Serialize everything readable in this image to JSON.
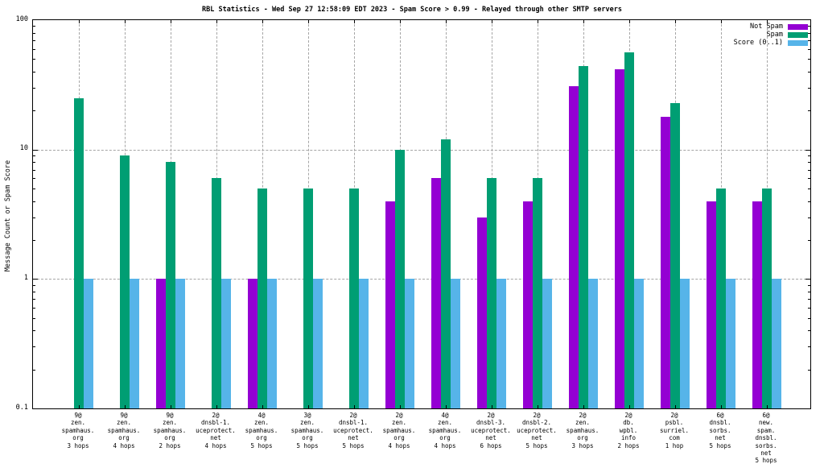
{
  "window": {
    "background": "#ffffff",
    "border_color": "#000000",
    "grid_color": "#a6a6a6"
  },
  "chart_data": {
    "type": "bar",
    "title": "RBL Statistics - Wed Sep 27 12:58:09 EDT 2023 - Spam Score > 0.99 - Relayed through other SMTP servers",
    "ylabel": "Message Count or Spam Score",
    "xlabel": "",
    "y_scale": "log",
    "ylim": [
      0.1,
      100
    ],
    "yticks": [
      0.1,
      1,
      10,
      100
    ],
    "ytick_labels": [
      "0.1",
      "1",
      "10",
      "100"
    ],
    "grid": true,
    "legend_position": "top-right-inside",
    "categories": [
      [
        "9@",
        "zen.",
        "spamhaus.",
        "org",
        "3 hops"
      ],
      [
        "9@",
        "zen.",
        "spamhaus.",
        "org",
        "4 hops"
      ],
      [
        "9@",
        "zen.",
        "spamhaus.",
        "org",
        "2 hops"
      ],
      [
        "2@",
        "dnsbl-1.",
        "uceprotect.",
        "net",
        "4 hops"
      ],
      [
        "4@",
        "zen.",
        "spamhaus.",
        "org",
        "5 hops"
      ],
      [
        "3@",
        "zen.",
        "spamhaus.",
        "org",
        "5 hops"
      ],
      [
        "2@",
        "dnsbl-1.",
        "uceprotect.",
        "net",
        "5 hops"
      ],
      [
        "2@",
        "zen.",
        "spamhaus.",
        "org",
        "4 hops"
      ],
      [
        "4@",
        "zen.",
        "spamhaus.",
        "org",
        "4 hops"
      ],
      [
        "2@",
        "dnsbl-3.",
        "uceprotect.",
        "net",
        "6 hops"
      ],
      [
        "2@",
        "dnsbl-2.",
        "uceprotect.",
        "net",
        "5 hops"
      ],
      [
        "2@",
        "zen.",
        "spamhaus.",
        "org",
        "3 hops"
      ],
      [
        "2@",
        "db.",
        "wpbl.",
        "info",
        "2 hops"
      ],
      [
        "2@",
        "psbl.",
        "surriel.",
        "com",
        "1 hop"
      ],
      [
        "6@",
        "dnsbl.",
        "sorbs.",
        "net",
        "5 hops"
      ],
      [
        "6@",
        "new.",
        "spam.",
        "dnsbl.",
        "sorbs.",
        "net",
        "5 hops"
      ]
    ],
    "series": [
      {
        "name": "Not Spam",
        "color": "#9400d3",
        "values": [
          0,
          0,
          1,
          0,
          1,
          0,
          0,
          4,
          6,
          3,
          4,
          31,
          42,
          18,
          4,
          4
        ]
      },
      {
        "name": "Spam",
        "color": "#009e73",
        "values": [
          25,
          9,
          8,
          6,
          5,
          5,
          5,
          10,
          12,
          6,
          6,
          44,
          56,
          23,
          5,
          5
        ]
      },
      {
        "name": "Score (0..1)",
        "color": "#56b4e9",
        "values": [
          1,
          1,
          1,
          1,
          1,
          1,
          1,
          1,
          1,
          1,
          1,
          1,
          1,
          1,
          1,
          1
        ]
      }
    ]
  }
}
